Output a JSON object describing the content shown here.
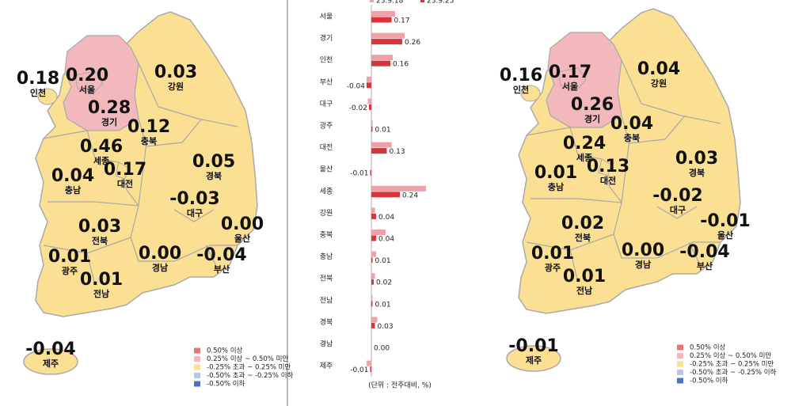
{
  "chart_data": {
    "type": "bar",
    "orientation": "horizontal",
    "categories": [
      "서울",
      "경기",
      "인천",
      "부산",
      "대구",
      "광주",
      "대전",
      "울산",
      "세종",
      "강원",
      "충북",
      "충남",
      "전북",
      "전남",
      "경북",
      "경남",
      "제주"
    ],
    "series": [
      {
        "name": "23.9.18",
        "color": "#f0a0a6",
        "values": [
          0.2,
          0.28,
          0.18,
          -0.04,
          -0.03,
          0.01,
          0.17,
          0.0,
          0.46,
          0.03,
          0.12,
          0.04,
          0.03,
          0.01,
          0.05,
          0.0,
          -0.04
        ],
        "value_labels": [
          "0.20",
          "0.28",
          "0.18",
          "-0.04",
          "-0.03",
          "0.01",
          "0.17",
          "0.00",
          "0.46",
          "0.03",
          "0.12",
          "0.04",
          "0.03",
          "0.01",
          "0.05",
          "0.00",
          "-0.04"
        ]
      },
      {
        "name": "23.9.25",
        "color": "#d6353c",
        "values": [
          0.17,
          0.26,
          0.16,
          -0.04,
          -0.02,
          0.01,
          0.13,
          -0.01,
          0.24,
          0.04,
          0.04,
          0.01,
          0.02,
          0.01,
          0.03,
          0.0,
          -0.01
        ],
        "value_labels": [
          "0.17",
          "0.26",
          "0.16",
          "-0.04",
          "-0.02",
          "0.01",
          "0.13",
          "-0.01",
          "0.24",
          "0.04",
          "0.04",
          "0.01",
          "0.02",
          "0.01",
          "0.03",
          "0.00",
          "-0.01"
        ]
      }
    ],
    "footnote": "(단위 : 전주대비, %)"
  },
  "legend": {
    "items": [
      {
        "label": "0.50% 이상",
        "color": "#e87479"
      },
      {
        "label": "0.25% 이상 ~ 0.50% 미만",
        "color": "#f2b8bb"
      },
      {
        "label": "-0.25% 초과 ~ 0.25% 미만",
        "color": "#fbdf93"
      },
      {
        "label": "-0.50% 초과 ~ -0.25% 이하",
        "color": "#b7c7e6"
      },
      {
        "label": "-0.50% 이하",
        "color": "#4a72c0"
      }
    ]
  }
}
